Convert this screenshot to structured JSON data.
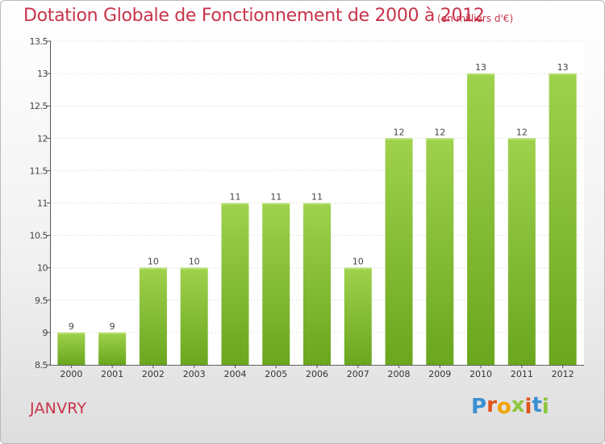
{
  "header": {
    "title": "Dotation Globale de Fonctionnement de 2000 à 2012",
    "subtitle": "(en milliers d'€)"
  },
  "footer": {
    "commune": "JANVRY",
    "logo_letters": [
      "P",
      "r",
      "o",
      "x",
      "i",
      "t",
      "i"
    ],
    "logo_colors": [
      "#3a8fd1",
      "#e0541c",
      "#f3a300",
      "#8cc63f",
      "#e0541c",
      "#3a8fd1",
      "#8cc63f"
    ]
  },
  "chart_data": {
    "type": "bar",
    "title": "Dotation Globale de Fonctionnement de 2000 à 2012",
    "categories": [
      "2000",
      "2001",
      "2002",
      "2003",
      "2004",
      "2005",
      "2006",
      "2007",
      "2008",
      "2009",
      "2010",
      "2011",
      "2012"
    ],
    "values": [
      9,
      9,
      10,
      10,
      11,
      11,
      11,
      10,
      12,
      12,
      13,
      12,
      13
    ],
    "value_labels": [
      "9",
      "9",
      "10",
      "10",
      "11",
      "11",
      "11",
      "10",
      "12",
      "12",
      "13",
      "12",
      "13"
    ],
    "yticks": [
      "8.5",
      "9",
      "9.5",
      "10",
      "10.5",
      "11",
      "11.5",
      "12",
      "12.5",
      "13",
      "13.5"
    ],
    "ylim": [
      8.5,
      13.5
    ],
    "grid": true,
    "legend": "none",
    "bar_color": "#8cc63f",
    "bar_color_light": "#9fd24c",
    "bar_color_dark": "#6aa61e"
  }
}
